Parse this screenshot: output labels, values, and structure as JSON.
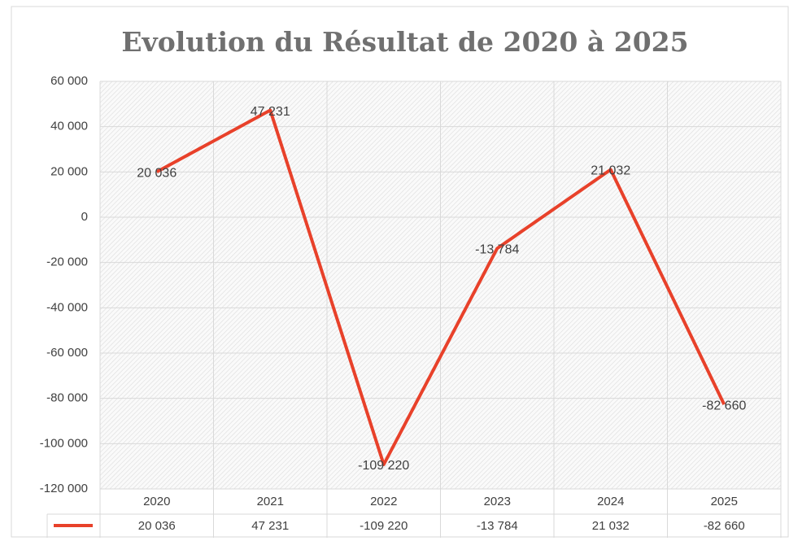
{
  "chart_data": {
    "type": "line",
    "title": "Evolution du Résultat de 2020 à 2025",
    "categories": [
      "2020",
      "2021",
      "2022",
      "2023",
      "2024",
      "2025"
    ],
    "values": [
      20036,
      47231,
      -109220,
      -13784,
      21032,
      -82660
    ],
    "value_labels": [
      "20 036",
      "47 231",
      "-109 220",
      "-13 784",
      "21 032",
      "-82 660"
    ],
    "color": "#e8412a",
    "ylim": [
      -120000,
      60000
    ],
    "yticks": [
      {
        "value": -120000,
        "label": "-120 000"
      },
      {
        "value": -100000,
        "label": "-100 000"
      },
      {
        "value": -80000,
        "label": "-80 000"
      },
      {
        "value": -60000,
        "label": "-60 000"
      },
      {
        "value": -40000,
        "label": "-40 000"
      },
      {
        "value": -20000,
        "label": "-20 000"
      },
      0,
      {
        "value": 20000,
        "label": "20 000"
      },
      {
        "value": 40000,
        "label": "40 000"
      },
      {
        "value": 60000,
        "label": "60 000"
      }
    ],
    "grid": true,
    "data_table": true
  }
}
